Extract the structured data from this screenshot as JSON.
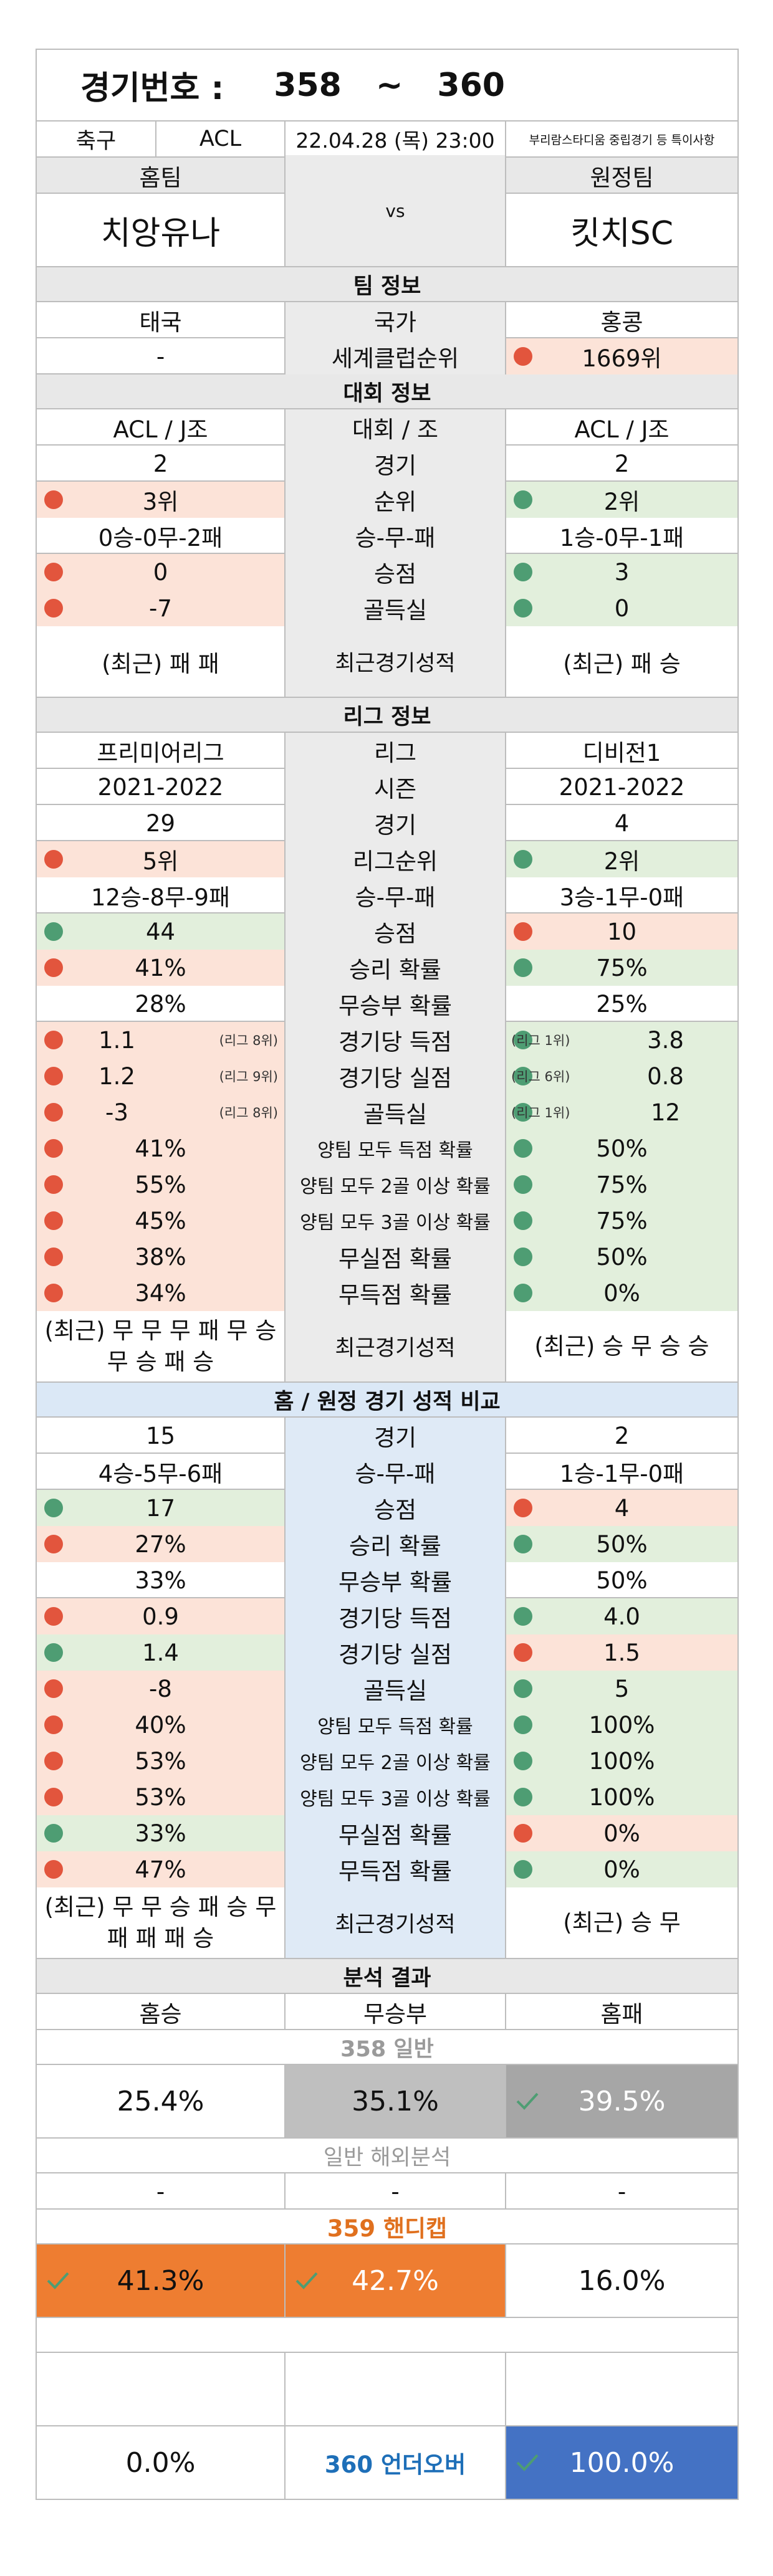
{
  "header": {
    "label": "경기번호 :",
    "from": "358",
    "tilde": "~",
    "to": "360"
  },
  "info": {
    "sport": "축구",
    "league": "ACL",
    "datetime": "22.04.28 (목) 23:00",
    "note": "부리람스타디움 중립경기 등 특이사항"
  },
  "teams": {
    "home_label": "홈팀",
    "away_label": "원정팀",
    "home": "치앙유나",
    "vs": "vs",
    "away": "킷치SC"
  },
  "team_info": {
    "title": "팀 정보",
    "rows": [
      {
        "home": "태국",
        "label": "국가",
        "away": "홍콩"
      },
      {
        "home": "-",
        "label": "세계클럽순위",
        "away": "1669위"
      }
    ]
  },
  "tournament": {
    "title": "대회 정보",
    "rows": [
      {
        "home": "ACL / J조",
        "label": "대회 / 조",
        "away": "ACL / J조"
      },
      {
        "home": "2",
        "label": "경기",
        "away": "2"
      },
      {
        "home": "3위",
        "label": "순위",
        "away": "2위"
      },
      {
        "home": "0승-0무-2패",
        "label": "승-무-패",
        "away": "1승-0무-1패"
      },
      {
        "home": "0",
        "label": "승점",
        "away": "3"
      },
      {
        "home": "-7",
        "label": "골득실",
        "away": "0"
      },
      {
        "home": "(최근) 패 패",
        "label": "최근경기성적",
        "away": "(최근) 패 승"
      }
    ]
  },
  "league": {
    "title": "리그 정보",
    "rows": [
      {
        "home": "프리미어리그",
        "label": "리그",
        "away": "디비전1"
      },
      {
        "home": "2021-2022",
        "label": "시즌",
        "away": "2021-2022"
      },
      {
        "home": "29",
        "label": "경기",
        "away": "4"
      },
      {
        "home": "5위",
        "label": "리그순위",
        "away": "2위"
      },
      {
        "home": "12승-8무-9패",
        "label": "승-무-패",
        "away": "3승-1무-0패"
      },
      {
        "home": "44",
        "label": "승점",
        "away": "10"
      },
      {
        "home": "41%",
        "label": "승리 확률",
        "away": "75%"
      },
      {
        "home": "28%",
        "label": "무승부 확률",
        "away": "25%"
      },
      {
        "home": "1.1",
        "home_rank": "(리그 8위)",
        "label": "경기당 득점",
        "away_rank": "(리그 1위)",
        "away": "3.8"
      },
      {
        "home": "1.2",
        "home_rank": "(리그 9위)",
        "label": "경기당 실점",
        "away_rank": "(리그 6위)",
        "away": "0.8"
      },
      {
        "home": "-3",
        "home_rank": "(리그 8위)",
        "label": "골득실",
        "away_rank": "(리그 1위)",
        "away": "12"
      },
      {
        "home": "41%",
        "label": "양팀 모두 득점 확률",
        "away": "50%"
      },
      {
        "home": "55%",
        "label": "양팀 모두 2골 이상 확률",
        "away": "75%"
      },
      {
        "home": "45%",
        "label": "양팀 모두 3골 이상 확률",
        "away": "75%"
      },
      {
        "home": "38%",
        "label": "무실점 확률",
        "away": "50%"
      },
      {
        "home": "34%",
        "label": "무득점 확률",
        "away": "0%"
      },
      {
        "home": "(최근) 무 무 무 패 무 승 무 승 패 승",
        "label": "최근경기성적",
        "away": "(최근) 승 무 승 승"
      }
    ]
  },
  "homeaway": {
    "title": "홈 / 원정 경기 성적 비교",
    "rows": [
      {
        "home": "15",
        "label": "경기",
        "away": "2"
      },
      {
        "home": "4승-5무-6패",
        "label": "승-무-패",
        "away": "1승-1무-0패"
      },
      {
        "home": "17",
        "label": "승점",
        "away": "4"
      },
      {
        "home": "27%",
        "label": "승리 확률",
        "away": "50%"
      },
      {
        "home": "33%",
        "label": "무승부 확률",
        "away": "50%"
      },
      {
        "home": "0.9",
        "label": "경기당 득점",
        "away": "4.0"
      },
      {
        "home": "1.4",
        "label": "경기당 실점",
        "away": "1.5"
      },
      {
        "home": "-8",
        "label": "골득실",
        "away": "5"
      },
      {
        "home": "40%",
        "label": "양팀 모두 득점 확률",
        "away": "100%"
      },
      {
        "home": "53%",
        "label": "양팀 모두 2골 이상 확률",
        "away": "100%"
      },
      {
        "home": "53%",
        "label": "양팀 모두 3골 이상 확률",
        "away": "100%"
      },
      {
        "home": "33%",
        "label": "무실점 확률",
        "away": "0%"
      },
      {
        "home": "47%",
        "label": "무득점 확률",
        "away": "0%"
      },
      {
        "home": "(최근) 무 무 승 패 승 무 패 패 패 승",
        "label": "최근경기성적",
        "away": "(최근) 승 무"
      }
    ]
  },
  "analysis": {
    "title": "분석 결과",
    "cols": [
      "홈승",
      "무승부",
      "홈패"
    ],
    "general_title": "358 일반",
    "general": [
      "25.4%",
      "35.1%",
      "39.5%"
    ],
    "overseas_title": "일반 해외분석",
    "overseas": [
      "-",
      "-",
      "-"
    ],
    "handicap_title": "359 핸디캡",
    "handicap": [
      "41.3%",
      "42.7%",
      "16.0%"
    ],
    "underover_left": "0.0%",
    "underover_title": "360 언더오버",
    "underover_right": "100.0%"
  },
  "colors": {
    "highlight_red": "#fce3d8",
    "highlight_green": "#e2efdc",
    "dot_red": "#e2553d",
    "dot_green": "#4e9d73",
    "orange": "#ee7d31",
    "blue": "#4472c4",
    "gray": "#a6a6a6"
  }
}
